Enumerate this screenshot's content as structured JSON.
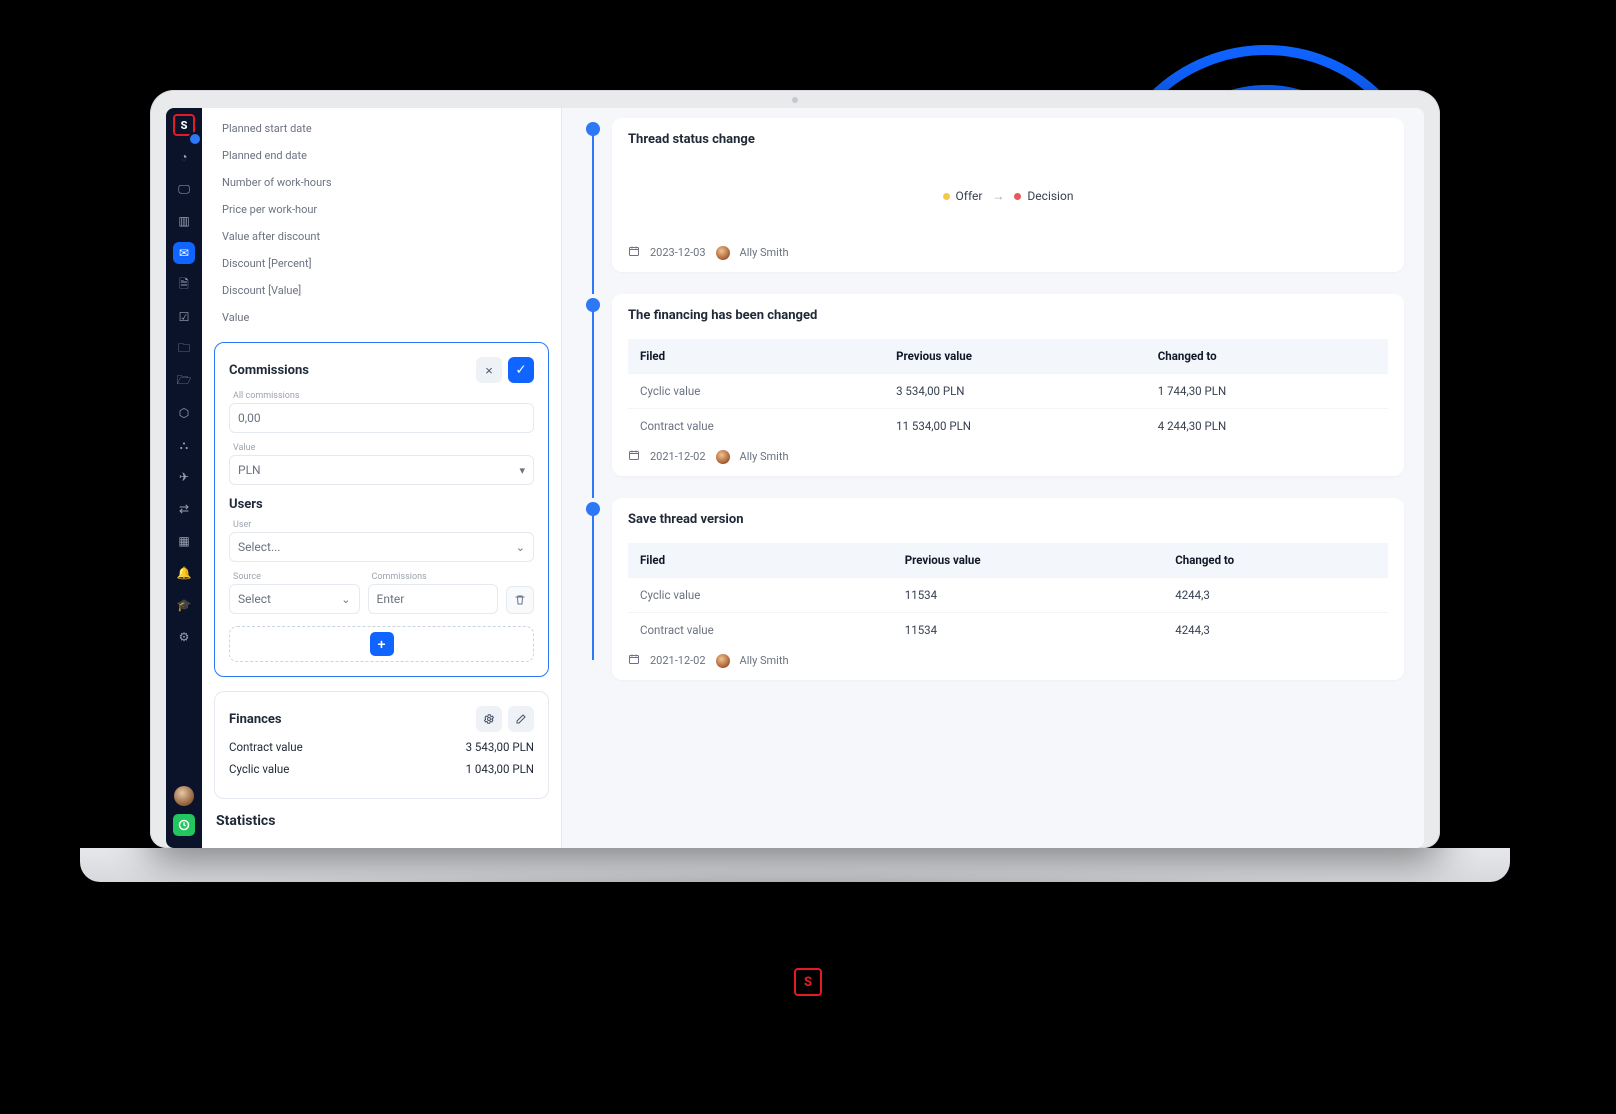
{
  "colors": {
    "accent_blue": "#1064ff",
    "ring_blue": "#0f62fe",
    "navy": "#0b132b",
    "red": "#e31b23",
    "green": "#22c55e",
    "offer_dot": "#f2c94c",
    "decision_dot": "#eb5757",
    "bg_grey": "#f5f7fa"
  },
  "sidebar": {
    "items": [
      {
        "name": "logo-icon",
        "glyph": "S"
      },
      {
        "name": "gauge-icon"
      },
      {
        "name": "monitor-icon"
      },
      {
        "name": "chart-icon"
      },
      {
        "name": "inbox-icon",
        "active": true
      },
      {
        "name": "doc-icon"
      },
      {
        "name": "calendar-icon"
      },
      {
        "name": "folder-icon"
      },
      {
        "name": "folder2-icon"
      },
      {
        "name": "graph-icon"
      },
      {
        "name": "people-icon"
      },
      {
        "name": "send-icon"
      },
      {
        "name": "swap-icon"
      },
      {
        "name": "task-icon"
      },
      {
        "name": "bell-icon"
      },
      {
        "name": "edu-icon"
      },
      {
        "name": "gear-icon"
      }
    ]
  },
  "left": {
    "fields": [
      "Planned start date",
      "Planned end date",
      "Number of work-hours",
      "Price per work-hour",
      "Value after discount",
      "Discount [Percent]",
      "Discount [Value]",
      "Value"
    ],
    "commissions": {
      "title": "Commissions",
      "all_commissions_label": "All commissions",
      "all_commissions_value": "0,00",
      "value_label": "Value",
      "value_currency": "PLN",
      "users_title": "Users",
      "user_label": "User",
      "user_placeholder": "Select...",
      "source_label": "Source",
      "source_placeholder": "Select",
      "commissions_label": "Commissions",
      "commissions_placeholder": "Enter",
      "close_label": "×",
      "confirm_label": "✓",
      "add_label": "+"
    },
    "finances": {
      "title": "Finances",
      "rows": [
        {
          "label": "Contract value",
          "value": "3 543,00 PLN"
        },
        {
          "label": "Cyclic value",
          "value": "1 043,00 PLN"
        }
      ]
    },
    "statistics_title": "Statistics"
  },
  "timeline": [
    {
      "title": "Thread status change",
      "type": "status",
      "from": "Offer",
      "to": "Decision",
      "date": "2023-12-03",
      "author": "Ally Smith"
    },
    {
      "title": "The financing has been changed",
      "type": "table",
      "headers": [
        "Filed",
        "Previous value",
        "Changed to"
      ],
      "rows": [
        [
          "Cyclic value",
          "3 534,00 PLN",
          "1 744,30 PLN"
        ],
        [
          "Contract value",
          "11 534,00 PLN",
          "4 244,30 PLN"
        ]
      ],
      "date": "2021-12-02",
      "author": "Ally Smith"
    },
    {
      "title": "Save thread version",
      "type": "table",
      "headers": [
        "Filed",
        "Previous value",
        "Changed to"
      ],
      "rows": [
        [
          "Cyclic value",
          "11534",
          "4244,3"
        ],
        [
          "Contract value",
          "11534",
          "4244,3"
        ]
      ],
      "date": "2021-12-02",
      "author": "Ally Smith"
    }
  ]
}
